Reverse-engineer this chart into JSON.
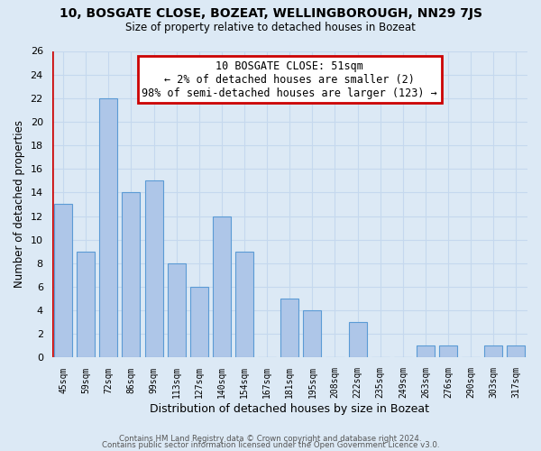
{
  "title": "10, BOSGATE CLOSE, BOZEAT, WELLINGBOROUGH, NN29 7JS",
  "subtitle": "Size of property relative to detached houses in Bozeat",
  "xlabel": "Distribution of detached houses by size in Bozeat",
  "ylabel": "Number of detached properties",
  "bar_labels": [
    "45sqm",
    "59sqm",
    "72sqm",
    "86sqm",
    "99sqm",
    "113sqm",
    "127sqm",
    "140sqm",
    "154sqm",
    "167sqm",
    "181sqm",
    "195sqm",
    "208sqm",
    "222sqm",
    "235sqm",
    "249sqm",
    "263sqm",
    "276sqm",
    "290sqm",
    "303sqm",
    "317sqm"
  ],
  "bar_values": [
    13,
    9,
    22,
    14,
    15,
    8,
    6,
    12,
    9,
    0,
    5,
    4,
    0,
    3,
    0,
    0,
    1,
    1,
    0,
    1,
    1
  ],
  "bar_color": "#aec6e8",
  "bar_edge_color": "#5b9bd5",
  "annotation_box_text": "10 BOSGATE CLOSE: 51sqm\n← 2% of detached houses are smaller (2)\n98% of semi-detached houses are larger (123) →",
  "annotation_box_edge_color": "#cc0000",
  "annotation_box_facecolor": "white",
  "red_line_color": "#cc0000",
  "ylim": [
    0,
    26
  ],
  "yticks": [
    0,
    2,
    4,
    6,
    8,
    10,
    12,
    14,
    16,
    18,
    20,
    22,
    24,
    26
  ],
  "grid_color": "#c5d8ee",
  "background_color": "#dce9f5",
  "footer_line1": "Contains HM Land Registry data © Crown copyright and database right 2024.",
  "footer_line2": "Contains public sector information licensed under the Open Government Licence v3.0."
}
